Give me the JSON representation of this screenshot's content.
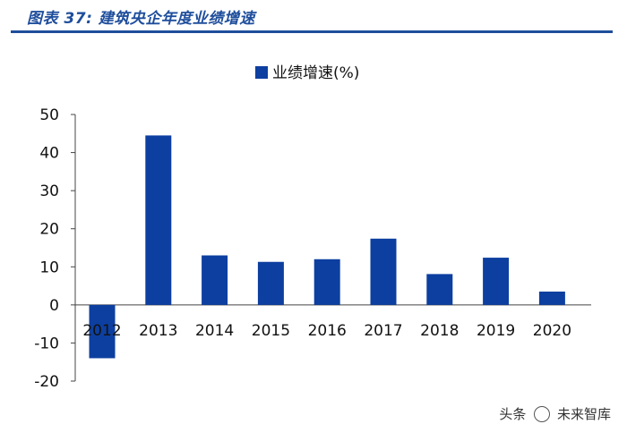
{
  "figure": {
    "title": "图表 37:  建筑央企年度业绩增速"
  },
  "chart_data": {
    "type": "bar",
    "categories": [
      "2012",
      "2013",
      "2014",
      "2015",
      "2016",
      "2017",
      "2018",
      "2019",
      "2020"
    ],
    "series": [
      {
        "name": "业绩增速(%)",
        "values": [
          -14,
          44.5,
          13,
          11.3,
          12,
          17.4,
          8.1,
          12.4,
          3.5
        ],
        "color": "#0d3fa0"
      }
    ],
    "yticks": [
      "50",
      "40",
      "30",
      "20",
      "10",
      "0",
      "-10",
      "-20"
    ],
    "ylim": [
      -20,
      50
    ],
    "legend": "top-center",
    "grid": false
  },
  "watermark": {
    "text_left": "头条",
    "text_right": "未来智库"
  }
}
